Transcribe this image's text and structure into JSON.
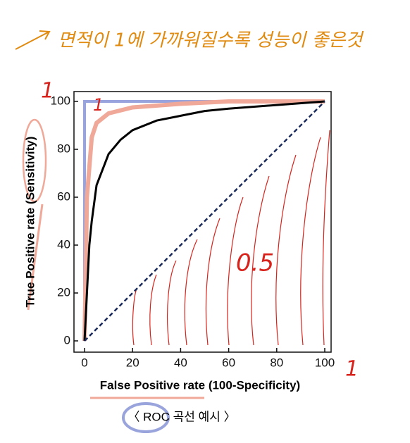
{
  "chart_data": {
    "type": "line",
    "note": "면적이 1에 가까워질수록 성능이 좋은것",
    "x_label": "False Positive rate (100-Specificity)",
    "y_label": "True Positive rate (Sensitivity)",
    "caption": "〈 ROC 곡선 예시 〉",
    "annotations": [
      "1",
      "1",
      "0.5",
      "1"
    ],
    "xlim": [
      0,
      100
    ],
    "ylim": [
      0,
      100
    ],
    "xticks": [
      0,
      20,
      40,
      60,
      80,
      100
    ],
    "yticks": [
      0,
      20,
      40,
      60,
      80,
      100
    ],
    "series": [
      {
        "color": "#9aa4dc",
        "x": [
          0,
          0,
          100
        ],
        "values": [
          0,
          100,
          100
        ]
      },
      {
        "color": "#f0a898",
        "x": [
          0,
          1,
          3,
          5,
          10,
          20,
          40,
          60,
          80,
          100
        ],
        "values": [
          0,
          60,
          85,
          91,
          95,
          97.5,
          99,
          100,
          100,
          100
        ]
      },
      {
        "color": "#000000",
        "x": [
          0,
          2,
          3,
          5,
          10,
          15,
          20,
          30,
          40,
          50,
          60,
          80,
          100
        ],
        "values": [
          0,
          40,
          50,
          65,
          78,
          84,
          88,
          92,
          94,
          96,
          97,
          98.5,
          100
        ]
      },
      {
        "color": "#1a2a5a",
        "dashed": true,
        "x": [
          0,
          100
        ],
        "values": [
          0,
          100
        ]
      }
    ]
  }
}
